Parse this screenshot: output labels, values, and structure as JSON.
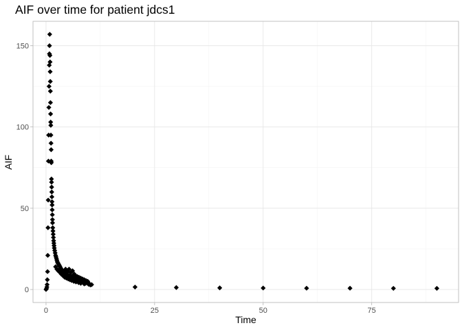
{
  "chart_data": {
    "type": "scatter",
    "title": "AIF over time for patient jdcs1",
    "xlabel": "Time",
    "ylabel": "AIF",
    "xlim": [
      -3,
      95
    ],
    "ylim": [
      -8,
      165
    ],
    "x_ticks": [
      0,
      25,
      50,
      75
    ],
    "y_ticks": [
      0,
      50,
      100,
      150
    ],
    "grid": true,
    "marker": "diamond",
    "marker_color": "#000000",
    "points": [
      {
        "x": 0.0,
        "y": 0.0
      },
      {
        "x": 0.1,
        "y": 0.5
      },
      {
        "x": 0.2,
        "y": 1.5
      },
      {
        "x": 0.25,
        "y": 3.0
      },
      {
        "x": 0.3,
        "y": 6.0
      },
      {
        "x": 0.35,
        "y": 11.0
      },
      {
        "x": 0.4,
        "y": 21.0
      },
      {
        "x": 0.45,
        "y": 38.0
      },
      {
        "x": 0.5,
        "y": 55.0
      },
      {
        "x": 0.55,
        "y": 79.0
      },
      {
        "x": 0.6,
        "y": 95.0
      },
      {
        "x": 0.65,
        "y": 112.0
      },
      {
        "x": 0.7,
        "y": 125.0
      },
      {
        "x": 0.75,
        "y": 138.0
      },
      {
        "x": 0.78,
        "y": 145.0
      },
      {
        "x": 0.8,
        "y": 150.0
      },
      {
        "x": 0.85,
        "y": 157.0
      },
      {
        "x": 0.9,
        "y": 144.0
      },
      {
        "x": 0.93,
        "y": 140.0
      },
      {
        "x": 0.95,
        "y": 134.0
      },
      {
        "x": 0.98,
        "y": 128.0
      },
      {
        "x": 1.0,
        "y": 122.0
      },
      {
        "x": 1.02,
        "y": 115.0
      },
      {
        "x": 1.05,
        "y": 108.0
      },
      {
        "x": 1.07,
        "y": 103.0
      },
      {
        "x": 1.1,
        "y": 101.0
      },
      {
        "x": 1.12,
        "y": 95.0
      },
      {
        "x": 1.15,
        "y": 90.0
      },
      {
        "x": 1.18,
        "y": 86.0
      },
      {
        "x": 1.2,
        "y": 79.0
      },
      {
        "x": 1.22,
        "y": 78.0
      },
      {
        "x": 1.25,
        "y": 68.0
      },
      {
        "x": 1.27,
        "y": 66.0
      },
      {
        "x": 1.3,
        "y": 63.0
      },
      {
        "x": 1.32,
        "y": 60.0
      },
      {
        "x": 1.35,
        "y": 57.0
      },
      {
        "x": 1.38,
        "y": 54.0
      },
      {
        "x": 1.4,
        "y": 52.0
      },
      {
        "x": 1.42,
        "y": 49.0
      },
      {
        "x": 1.45,
        "y": 46.0
      },
      {
        "x": 1.48,
        "y": 43.0
      },
      {
        "x": 1.5,
        "y": 41.0
      },
      {
        "x": 1.55,
        "y": 38.0
      },
      {
        "x": 1.6,
        "y": 36.0
      },
      {
        "x": 1.65,
        "y": 34.0
      },
      {
        "x": 1.7,
        "y": 32.0
      },
      {
        "x": 1.75,
        "y": 30.0
      },
      {
        "x": 1.8,
        "y": 28.5
      },
      {
        "x": 1.85,
        "y": 27.0
      },
      {
        "x": 1.9,
        "y": 25.5
      },
      {
        "x": 2.0,
        "y": 24.0
      },
      {
        "x": 2.1,
        "y": 22.5
      },
      {
        "x": 2.2,
        "y": 21.0
      },
      {
        "x": 2.3,
        "y": 20.0
      },
      {
        "x": 2.4,
        "y": 19.0
      },
      {
        "x": 2.5,
        "y": 18.0
      },
      {
        "x": 2.6,
        "y": 17.0
      },
      {
        "x": 2.7,
        "y": 16.5
      },
      {
        "x": 2.8,
        "y": 16.0
      },
      {
        "x": 2.9,
        "y": 15.5
      },
      {
        "x": 3.0,
        "y": 15.0
      },
      {
        "x": 3.1,
        "y": 14.5
      },
      {
        "x": 3.2,
        "y": 14.0
      },
      {
        "x": 3.3,
        "y": 13.5
      },
      {
        "x": 3.4,
        "y": 13.0
      },
      {
        "x": 3.5,
        "y": 12.5
      },
      {
        "x": 3.6,
        "y": 12.0
      },
      {
        "x": 3.8,
        "y": 11.5
      },
      {
        "x": 4.0,
        "y": 11.0
      },
      {
        "x": 4.2,
        "y": 10.5
      },
      {
        "x": 4.4,
        "y": 10.0
      },
      {
        "x": 4.6,
        "y": 9.5
      },
      {
        "x": 4.8,
        "y": 9.0
      },
      {
        "x": 5.0,
        "y": 8.8
      },
      {
        "x": 5.2,
        "y": 8.5
      },
      {
        "x": 5.4,
        "y": 8.2
      },
      {
        "x": 5.6,
        "y": 8.0
      },
      {
        "x": 5.8,
        "y": 7.8
      },
      {
        "x": 6.0,
        "y": 7.5
      },
      {
        "x": 6.3,
        "y": 7.2
      },
      {
        "x": 6.6,
        "y": 7.0
      },
      {
        "x": 7.0,
        "y": 6.5
      },
      {
        "x": 7.4,
        "y": 6.0
      },
      {
        "x": 7.8,
        "y": 5.8
      },
      {
        "x": 8.2,
        "y": 5.5
      },
      {
        "x": 8.6,
        "y": 5.0
      },
      {
        "x": 9.0,
        "y": 4.5
      },
      {
        "x": 9.5,
        "y": 4.0
      },
      {
        "x": 10.0,
        "y": 3.5
      },
      {
        "x": 10.5,
        "y": 3.0
      },
      {
        "x": 2.2,
        "y": 14.0
      },
      {
        "x": 2.5,
        "y": 12.5
      },
      {
        "x": 2.8,
        "y": 11.5
      },
      {
        "x": 3.2,
        "y": 10.5
      },
      {
        "x": 3.5,
        "y": 9.5
      },
      {
        "x": 3.9,
        "y": 8.5
      },
      {
        "x": 4.3,
        "y": 7.5
      },
      {
        "x": 4.7,
        "y": 7.0
      },
      {
        "x": 5.1,
        "y": 6.5
      },
      {
        "x": 5.5,
        "y": 6.0
      },
      {
        "x": 5.9,
        "y": 5.5
      },
      {
        "x": 6.4,
        "y": 5.0
      },
      {
        "x": 6.9,
        "y": 4.6
      },
      {
        "x": 7.5,
        "y": 4.2
      },
      {
        "x": 8.0,
        "y": 3.8
      },
      {
        "x": 8.8,
        "y": 3.4
      },
      {
        "x": 3.0,
        "y": 12.0
      },
      {
        "x": 3.7,
        "y": 10.0
      },
      {
        "x": 4.5,
        "y": 12.5
      },
      {
        "x": 5.0,
        "y": 11.0
      },
      {
        "x": 5.3,
        "y": 12.5
      },
      {
        "x": 5.7,
        "y": 10.5
      },
      {
        "x": 6.1,
        "y": 11.5
      },
      {
        "x": 6.5,
        "y": 9.5
      },
      {
        "x": 6.8,
        "y": 8.5
      },
      {
        "x": 7.2,
        "y": 8.0
      },
      {
        "x": 7.6,
        "y": 7.5
      },
      {
        "x": 8.0,
        "y": 7.0
      },
      {
        "x": 8.4,
        "y": 6.5
      },
      {
        "x": 8.8,
        "y": 6.0
      },
      {
        "x": 9.2,
        "y": 5.5
      },
      {
        "x": 9.6,
        "y": 5.0
      },
      {
        "x": 4.1,
        "y": 9.0
      },
      {
        "x": 4.9,
        "y": 8.0
      },
      {
        "x": 5.5,
        "y": 9.0
      },
      {
        "x": 6.2,
        "y": 8.5
      },
      {
        "x": 6.7,
        "y": 6.0
      },
      {
        "x": 7.3,
        "y": 5.5
      },
      {
        "x": 7.9,
        "y": 4.8
      },
      {
        "x": 8.5,
        "y": 4.5
      },
      {
        "x": 9.1,
        "y": 3.8
      },
      {
        "x": 9.8,
        "y": 3.2
      },
      {
        "x": 10.2,
        "y": 2.8
      },
      {
        "x": 20.5,
        "y": 1.5
      },
      {
        "x": 30.0,
        "y": 1.2
      },
      {
        "x": 40.0,
        "y": 1.0
      },
      {
        "x": 50.0,
        "y": 0.9
      },
      {
        "x": 60.0,
        "y": 0.8
      },
      {
        "x": 70.0,
        "y": 0.8
      },
      {
        "x": 80.0,
        "y": 0.7
      },
      {
        "x": 90.0,
        "y": 0.7
      }
    ]
  }
}
